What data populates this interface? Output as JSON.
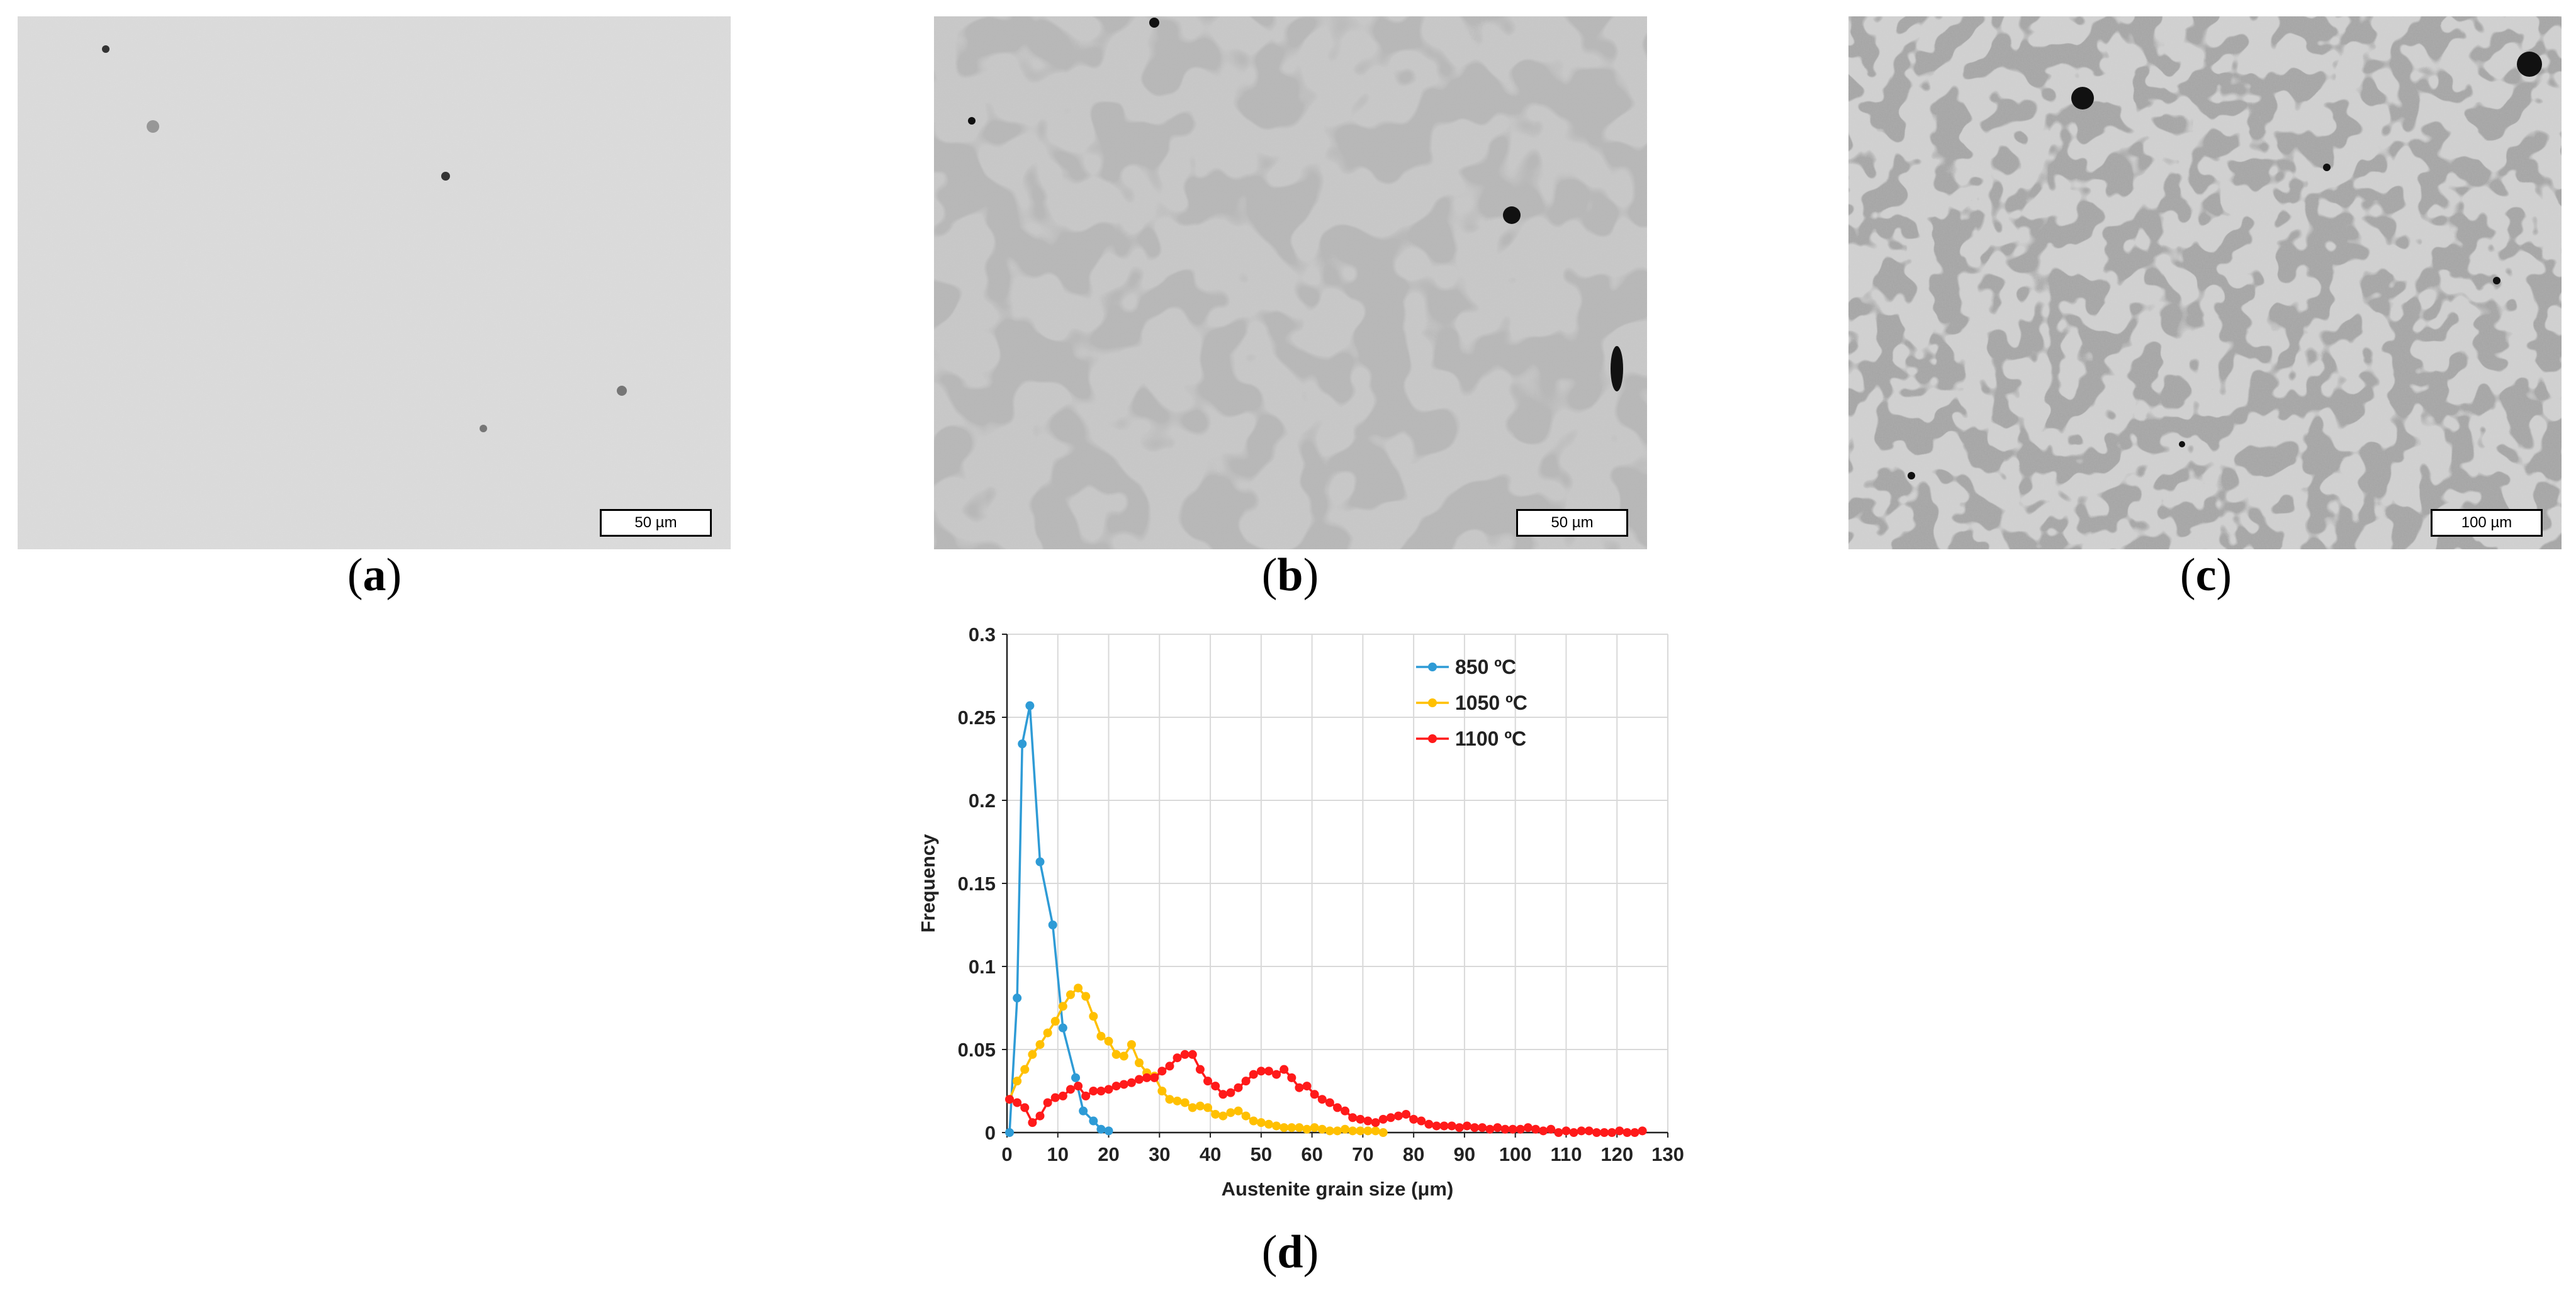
{
  "panels": [
    {
      "label": "a",
      "scale_bar": "50 µm"
    },
    {
      "label": "b",
      "scale_bar": "50 µm"
    },
    {
      "label": "c",
      "scale_bar": "100 µm"
    }
  ],
  "chart_label": "d",
  "chart_data": {
    "type": "line",
    "xlabel": "Austenite grain size (μm)",
    "ylabel": "Frequency",
    "xlim": [
      0,
      130
    ],
    "ylim": [
      0,
      0.3
    ],
    "xticks": [
      0,
      10,
      20,
      30,
      40,
      50,
      60,
      70,
      80,
      90,
      100,
      110,
      120,
      130
    ],
    "yticks": [
      0,
      0.05,
      0.1,
      0.15,
      0.2,
      0.25,
      0.3
    ],
    "ytick_labels": [
      "0",
      "0.05",
      "0.1",
      "0.15",
      "0.2",
      "0.25",
      "0.3"
    ],
    "grid": true,
    "legend_position": "top-right",
    "series": [
      {
        "name": "850 ºC",
        "color": "#2e9bd6",
        "x": [
          0.5,
          2,
          3,
          4.5,
          6.5,
          9,
          11,
          13.5,
          15,
          17,
          18.5,
          20
        ],
        "y": [
          0.0,
          0.081,
          0.234,
          0.257,
          0.163,
          0.125,
          0.063,
          0.033,
          0.013,
          0.007,
          0.002,
          0.001
        ]
      },
      {
        "name": "1050 ºC",
        "color": "#ffc000",
        "x": [
          0.5,
          2,
          3.5,
          5,
          6.5,
          8,
          9.5,
          11,
          12.5,
          14,
          15.5,
          17,
          18.5,
          20,
          21.5,
          23,
          24.5,
          26,
          27.5,
          29,
          30.5,
          32,
          33.5,
          35,
          36.5,
          38,
          39.5,
          41,
          42.5,
          44,
          45.5,
          47,
          48.5,
          50,
          51.5,
          53,
          54.5,
          56,
          57.5,
          59,
          60.5,
          62,
          63.5,
          65,
          66.5,
          68,
          69.5,
          71,
          72.5,
          74
        ],
        "y": [
          0.02,
          0.031,
          0.038,
          0.047,
          0.053,
          0.06,
          0.067,
          0.076,
          0.083,
          0.087,
          0.082,
          0.07,
          0.058,
          0.055,
          0.047,
          0.046,
          0.053,
          0.042,
          0.036,
          0.034,
          0.025,
          0.02,
          0.019,
          0.018,
          0.015,
          0.016,
          0.015,
          0.011,
          0.01,
          0.012,
          0.013,
          0.01,
          0.007,
          0.006,
          0.005,
          0.004,
          0.003,
          0.003,
          0.003,
          0.002,
          0.003,
          0.002,
          0.001,
          0.001,
          0.002,
          0.001,
          0.001,
          0.001,
          0.001,
          0.0
        ]
      },
      {
        "name": "1100 ºC",
        "color": "#ff1a1a",
        "x": [
          0.5,
          2,
          3.5,
          5,
          6.5,
          8,
          9.5,
          11,
          12.5,
          14,
          15.5,
          17,
          18.5,
          20,
          21.5,
          23,
          24.5,
          26,
          27.5,
          29,
          30.5,
          32,
          33.5,
          35,
          36.5,
          38,
          39.5,
          41,
          42.5,
          44,
          45.5,
          47,
          48.5,
          50,
          51.5,
          53,
          54.5,
          56,
          57.5,
          59,
          60.5,
          62,
          63.5,
          65,
          66.5,
          68,
          69.5,
          71,
          72.5,
          74,
          75.5,
          77,
          78.5,
          80,
          81.5,
          83,
          84.5,
          86,
          87.5,
          89,
          90.5,
          92,
          93.5,
          95,
          96.5,
          98,
          99.5,
          101,
          102.5,
          104,
          105.5,
          107,
          108.5,
          110,
          111.5,
          113,
          114.5,
          116,
          117.5,
          119,
          120.5,
          122,
          123.5,
          125
        ],
        "y": [
          0.02,
          0.018,
          0.015,
          0.006,
          0.01,
          0.018,
          0.021,
          0.022,
          0.026,
          0.028,
          0.022,
          0.025,
          0.025,
          0.026,
          0.028,
          0.029,
          0.03,
          0.032,
          0.033,
          0.033,
          0.037,
          0.04,
          0.045,
          0.047,
          0.047,
          0.038,
          0.031,
          0.028,
          0.023,
          0.024,
          0.027,
          0.031,
          0.035,
          0.037,
          0.037,
          0.035,
          0.038,
          0.033,
          0.027,
          0.028,
          0.023,
          0.02,
          0.018,
          0.015,
          0.013,
          0.009,
          0.008,
          0.007,
          0.006,
          0.008,
          0.009,
          0.01,
          0.011,
          0.008,
          0.007,
          0.005,
          0.004,
          0.004,
          0.004,
          0.003,
          0.004,
          0.003,
          0.003,
          0.002,
          0.003,
          0.002,
          0.002,
          0.002,
          0.003,
          0.002,
          0.001,
          0.002,
          0.0,
          0.001,
          0.0,
          0.001,
          0.001,
          0.0,
          0.0,
          0.0,
          0.001,
          0.0,
          0.0,
          0.001
        ]
      }
    ]
  }
}
